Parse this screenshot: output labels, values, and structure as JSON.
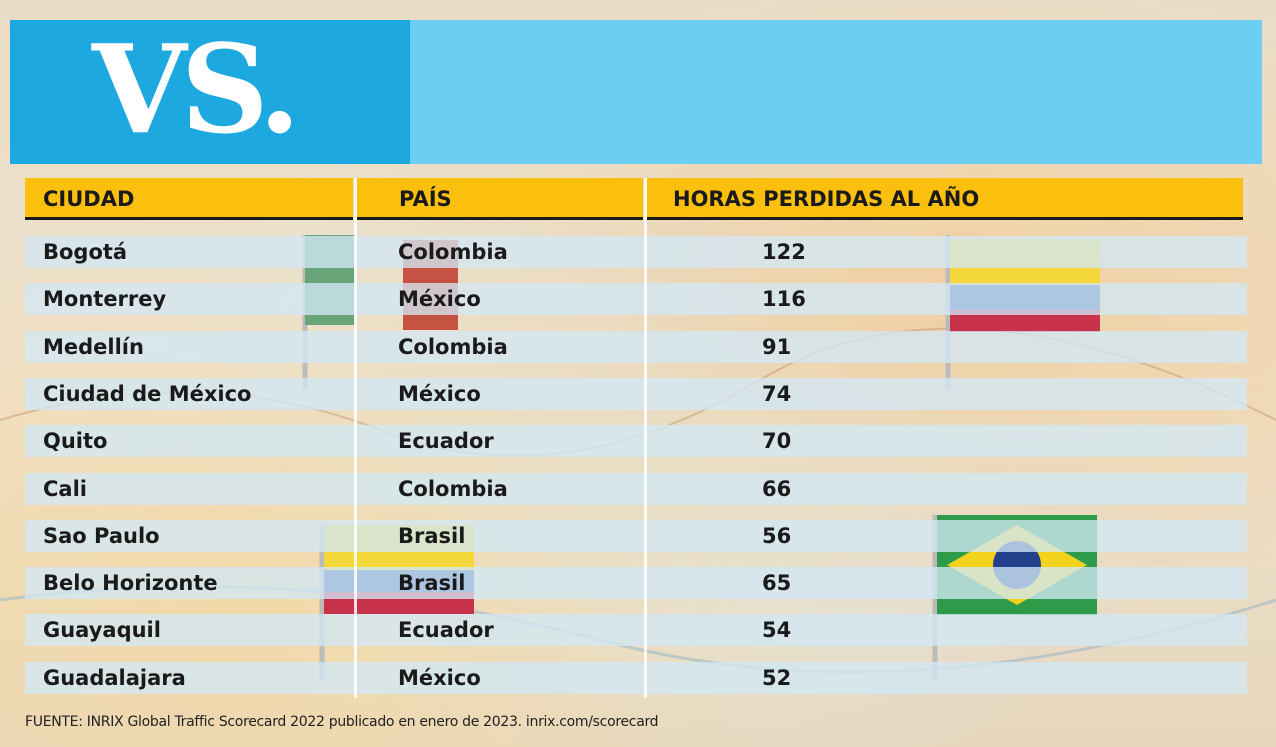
{
  "header": {
    "title": "VS."
  },
  "table": {
    "columns": [
      "CIUDAD",
      "PAÍS",
      "HORAS PERDIDAS AL AÑO"
    ],
    "rows": [
      [
        "Bogotá",
        "Colombia",
        122
      ],
      [
        "Monterrey",
        "México",
        116
      ],
      [
        "Medellín",
        "Colombia",
        91
      ],
      [
        "Ciudad de México",
        "México",
        74
      ],
      [
        "Quito",
        "Ecuador",
        70
      ],
      [
        "Cali",
        "Colombia",
        66
      ],
      [
        "Sao Paulo",
        "Brasil",
        56
      ],
      [
        "Belo Horizonte",
        "Brasil",
        65
      ],
      [
        "Guayaquil",
        "Ecuador",
        54
      ],
      [
        "Guadalajara",
        "México",
        52
      ]
    ]
  },
  "footer": {
    "source": "FUENTE: INRIX Global Traffic Scorecard 2022 publicado en enero de 2023.   inrix.com/scorecard"
  }
}
